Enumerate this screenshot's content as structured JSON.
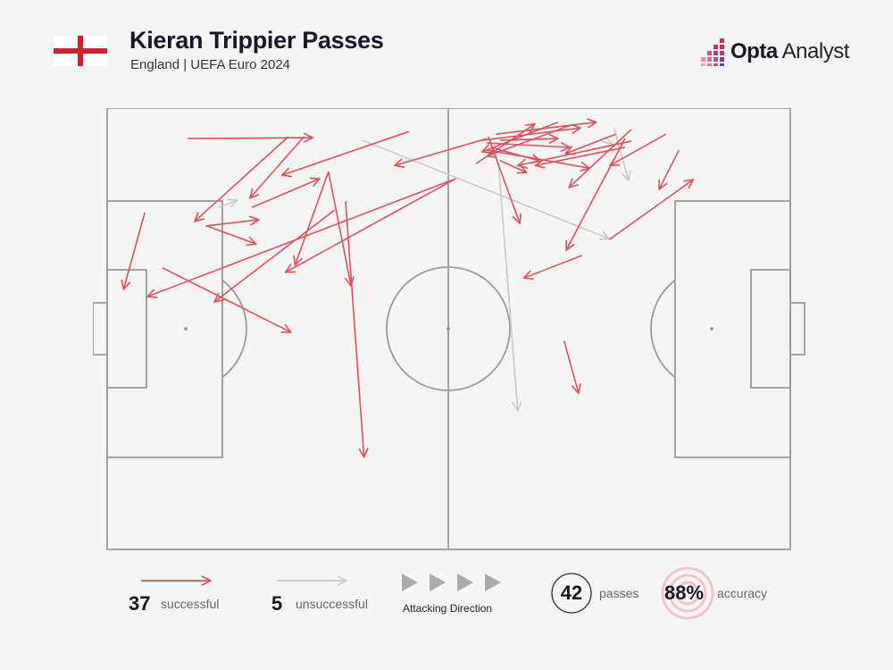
{
  "header": {
    "title": "Kieran Trippier Passes",
    "subtitle": "England | UEFA Euro 2024",
    "flag": "england-flag",
    "logo": "Opta Analyst"
  },
  "colors": {
    "successful": "#e0505c",
    "unsuccessful": "#c9c9c9",
    "pitch_lines": "#9a9a9a",
    "text": "#1c1428"
  },
  "chart_data": {
    "type": "pass-map",
    "attacking_direction": "left-to-right",
    "successful": [
      [
        11.8,
        6.9,
        30.1,
        6.7
      ],
      [
        26.5,
        6.5,
        12.8,
        25.7
      ],
      [
        28.8,
        6.5,
        20.9,
        20.4
      ],
      [
        44.2,
        5.3,
        25.6,
        15.2
      ],
      [
        21.2,
        22.5,
        31.1,
        16.0
      ],
      [
        14.4,
        26.7,
        22.2,
        25.3
      ],
      [
        14.6,
        26.7,
        21.8,
        30.8
      ],
      [
        5.5,
        23.7,
        2.4,
        41.1
      ],
      [
        8.1,
        36.2,
        26.9,
        50.8
      ],
      [
        32.4,
        14.4,
        27.5,
        35.6
      ],
      [
        32.4,
        14.4,
        35.7,
        40.3
      ],
      [
        34.9,
        21.1,
        37.6,
        79.1
      ],
      [
        33.3,
        23.1,
        15.7,
        43.9
      ],
      [
        51.0,
        16.0,
        5.9,
        42.7
      ],
      [
        51.0,
        16.0,
        26.1,
        37.2
      ],
      [
        55.6,
        6.9,
        42.1,
        13.0
      ],
      [
        54.0,
        12.6,
        62.6,
        3.6
      ],
      [
        54.9,
        7.3,
        69.3,
        4.5
      ],
      [
        66.0,
        3.2,
        54.9,
        9.9
      ],
      [
        56.9,
        5.9,
        71.6,
        3.2
      ],
      [
        55.6,
        7.9,
        67.7,
        8.9
      ],
      [
        55.6,
        9.5,
        70.6,
        13.6
      ],
      [
        57.5,
        11.9,
        61.4,
        14.6
      ],
      [
        76.7,
        7.5,
        60.1,
        13.0
      ],
      [
        74.5,
        5.9,
        67.1,
        10.3
      ],
      [
        55.8,
        6.5,
        60.4,
        26.1
      ],
      [
        76.7,
        4.9,
        67.6,
        18.0
      ],
      [
        75.8,
        6.9,
        67.2,
        32.2
      ],
      [
        81.8,
        5.9,
        73.6,
        13.0
      ],
      [
        83.7,
        9.5,
        80.8,
        18.4
      ],
      [
        73.5,
        29.8,
        85.8,
        16.2
      ],
      [
        69.5,
        33.4,
        61.0,
        38.5
      ],
      [
        66.9,
        52.8,
        69.0,
        64.6
      ],
      [
        56.2,
        8.9,
        63.4,
        12.0
      ],
      [
        68.0,
        3.8,
        55.6,
        10.9
      ],
      [
        75.8,
        8.9,
        62.7,
        13.0
      ],
      [
        57.5,
        7.3,
        66.0,
        6.9
      ]
    ],
    "unsuccessful": [
      [
        37.4,
        7.3,
        73.5,
        29.6
      ],
      [
        16.3,
        22.5,
        19.0,
        20.9
      ],
      [
        57.3,
        13.0,
        60.1,
        68.6
      ],
      [
        74.2,
        4.5,
        76.3,
        16.4
      ],
      [
        72.3,
        7.5,
        74.1,
        8.3
      ]
    ]
  },
  "legend": {
    "successful_count": "37",
    "successful_label": "successful",
    "unsuccessful_count": "5",
    "unsuccessful_label": "unsuccessful",
    "direction_label": "Attacking Direction",
    "passes_count": "42",
    "passes_label": "passes",
    "accuracy_value": "88%",
    "accuracy_label": "accuracy"
  }
}
